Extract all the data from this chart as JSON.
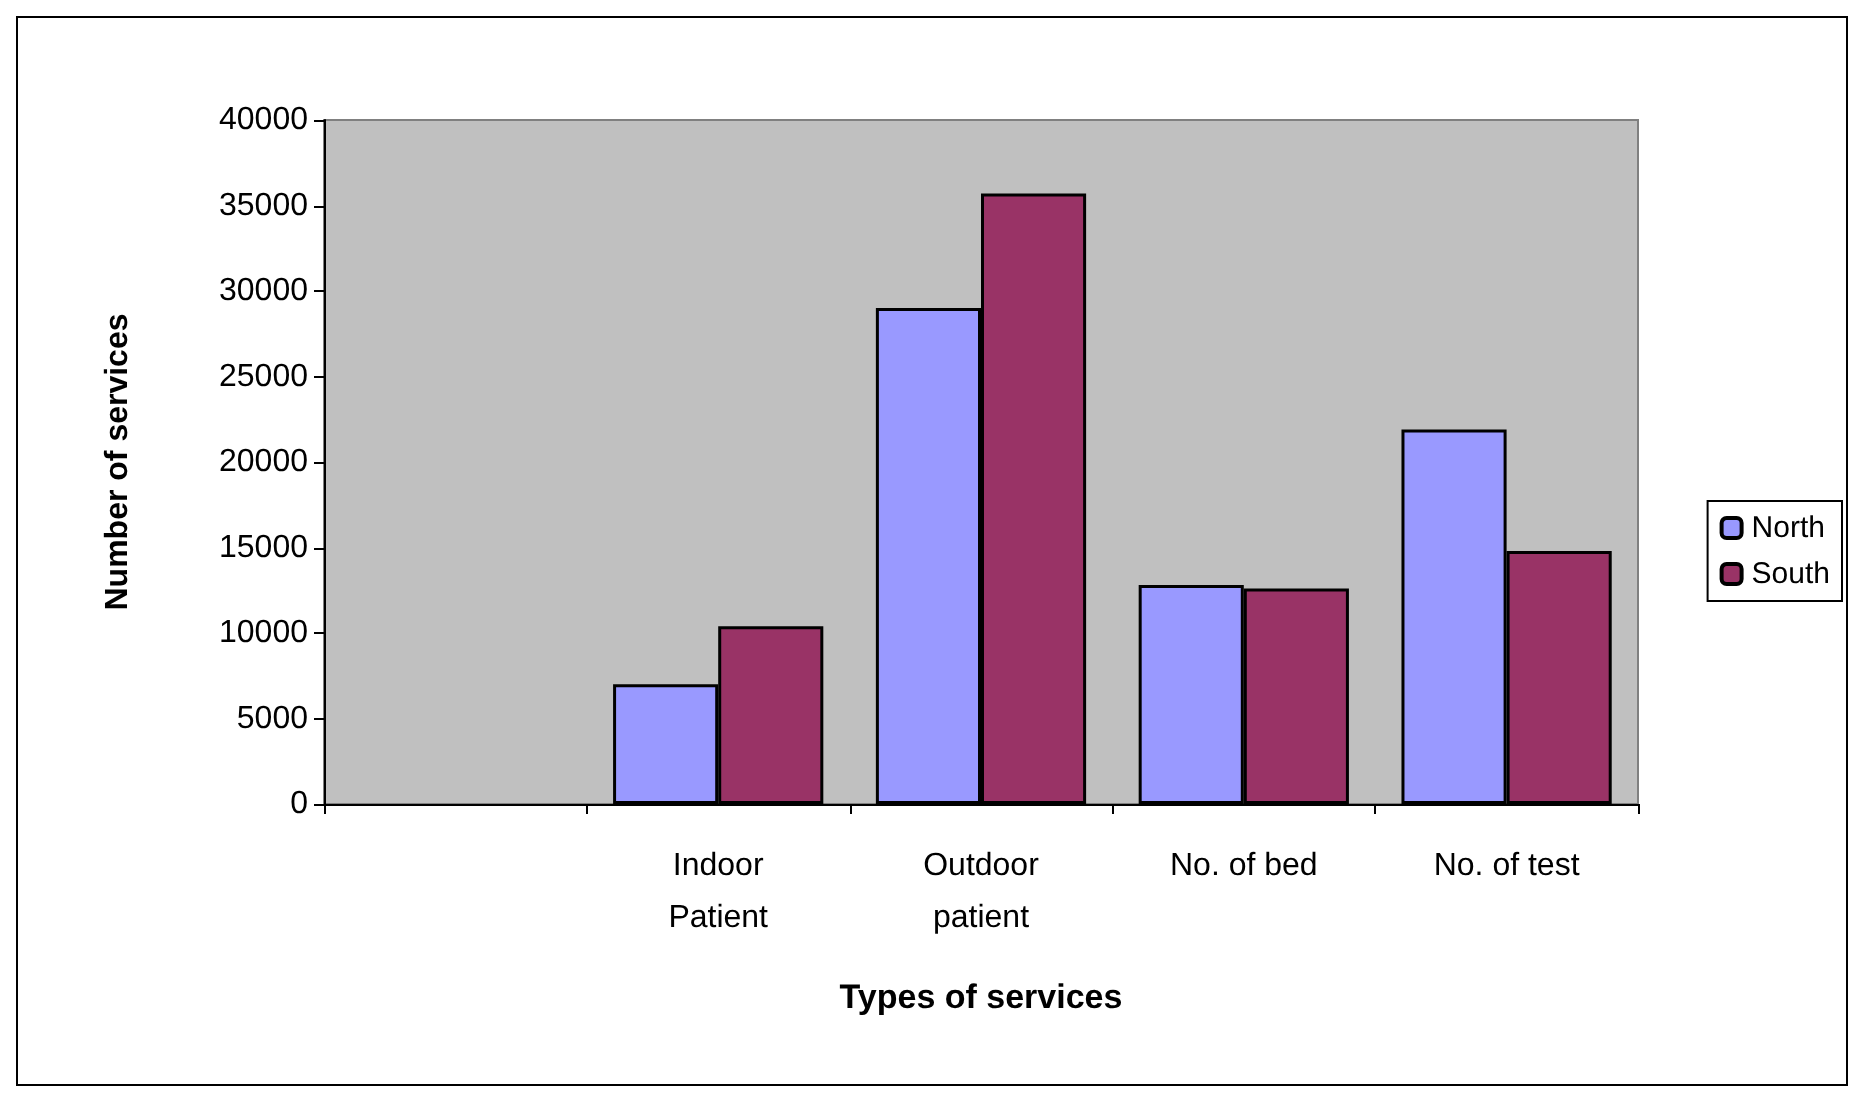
{
  "chart_data": {
    "type": "bar",
    "xlabel": "Types of services",
    "ylabel": "Number of services",
    "categories": [
      null,
      "Indoor\nPatient",
      "Outdoor\npatient",
      "No. of bed",
      "No. of test"
    ],
    "series": [
      {
        "name": "North",
        "color": "#9999ff",
        "values": [
          null,
          7000,
          29000,
          12800,
          21900
        ]
      },
      {
        "name": "South",
        "color": "#993366",
        "values": [
          null,
          10400,
          35700,
          12600,
          14800
        ]
      }
    ],
    "ylim": [
      0,
      40000
    ],
    "yticks": [
      0,
      5000,
      10000,
      15000,
      20000,
      25000,
      30000,
      35000,
      40000
    ],
    "grid": false,
    "legend": "right"
  }
}
